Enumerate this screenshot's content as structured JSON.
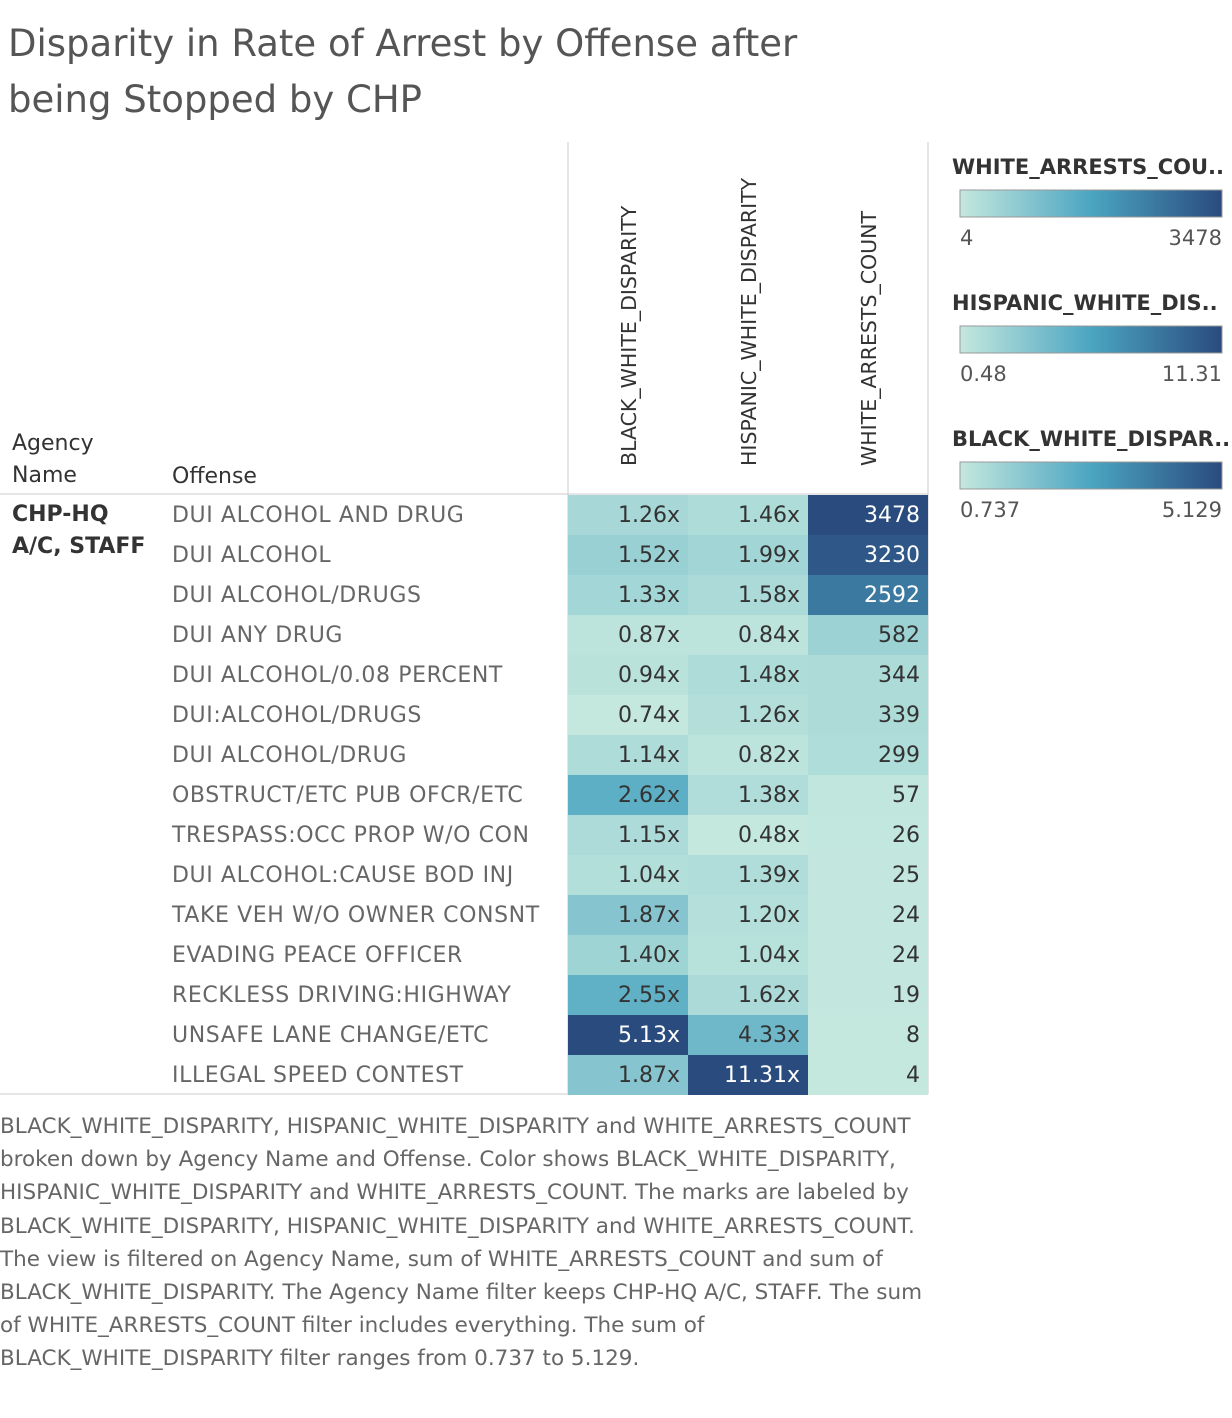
{
  "chart_data": {
    "type": "highlight_table",
    "title": "Disparity in Rate of Arrest by Offense after being Stopped by CHP",
    "row_headers": [
      "Agency Name",
      "Offense"
    ],
    "group": "CHP-HQ A/C, STAFF",
    "categories": [
      "DUI ALCOHOL AND DRUG",
      "DUI ALCOHOL",
      "DUI ALCOHOL/DRUGS",
      "DUI ANY DRUG",
      "DUI ALCOHOL/0.08 PERCENT",
      "DUI:ALCOHOL/DRUGS",
      "DUI ALCOHOL/DRUG",
      "OBSTRUCT/ETC PUB OFCR/ETC",
      "TRESPASS:OCC PROP W/O CON",
      "DUI ALCOHOL:CAUSE BOD INJ",
      "TAKE VEH W/O OWNER CONSNT",
      "EVADING PEACE OFFICER",
      "RECKLESS DRIVING:HIGHWAY",
      "UNSAFE LANE CHANGE/ETC",
      "ILLEGAL SPEED CONTEST"
    ],
    "color_scale": [
      "#c4e8de",
      "#4ba5c1",
      "#2a4b7e"
    ],
    "series": [
      {
        "name": "BLACK_WHITE_DISPARITY",
        "values": [
          1.26,
          1.52,
          1.33,
          0.87,
          0.94,
          0.74,
          1.14,
          2.62,
          1.15,
          1.04,
          1.87,
          1.4,
          2.55,
          5.13,
          1.87
        ],
        "value_labels": [
          "1.26x",
          "1.52x",
          "1.33x",
          "0.87x",
          "0.94x",
          "0.74x",
          "1.14x",
          "2.62x",
          "1.15x",
          "1.04x",
          "1.87x",
          "1.40x",
          "2.55x",
          "5.13x",
          "1.87x"
        ],
        "legend_title": "BLACK_WHITE_DISPAR..",
        "range": [
          0.737,
          5.129
        ]
      },
      {
        "name": "HISPANIC_WHITE_DISPARITY",
        "values": [
          1.46,
          1.99,
          1.58,
          0.84,
          1.48,
          1.26,
          0.82,
          1.38,
          0.48,
          1.39,
          1.2,
          1.04,
          1.62,
          4.33,
          11.31
        ],
        "value_labels": [
          "1.46x",
          "1.99x",
          "1.58x",
          "0.84x",
          "1.48x",
          "1.26x",
          "0.82x",
          "1.38x",
          "0.48x",
          "1.39x",
          "1.20x",
          "1.04x",
          "1.62x",
          "4.33x",
          "11.31x"
        ],
        "legend_title": "HISPANIC_WHITE_DIS..",
        "range": [
          0.48,
          11.31
        ]
      },
      {
        "name": "WHITE_ARRESTS_COUNT",
        "values": [
          3478,
          3230,
          2592,
          582,
          344,
          339,
          299,
          57,
          26,
          25,
          24,
          24,
          19,
          8,
          4
        ],
        "legend_title": "WHITE_ARRESTS_COU..",
        "range": [
          4,
          3478
        ]
      }
    ],
    "legend_order": [
      2,
      1,
      0
    ],
    "caption": "BLACK_WHITE_DISPARITY, HISPANIC_WHITE_DISPARITY and WHITE_ARRESTS_COUNT broken down by Agency Name and Offense.  Color shows BLACK_WHITE_DISPARITY, HISPANIC_WHITE_DISPARITY and WHITE_ARRESTS_COUNT.  The marks are labeled by BLACK_WHITE_DISPARITY, HISPANIC_WHITE_DISPARITY and WHITE_ARRESTS_COUNT. The view is filtered on Agency Name, sum of WHITE_ARRESTS_COUNT and sum of BLACK_WHITE_DISPARITY. The Agency Name filter keeps CHP-HQ A/C, STAFF. The sum of WHITE_ARRESTS_COUNT filter includes everything. The sum of BLACK_WHITE_DISPARITY filter ranges from 0.737 to 5.129."
  }
}
